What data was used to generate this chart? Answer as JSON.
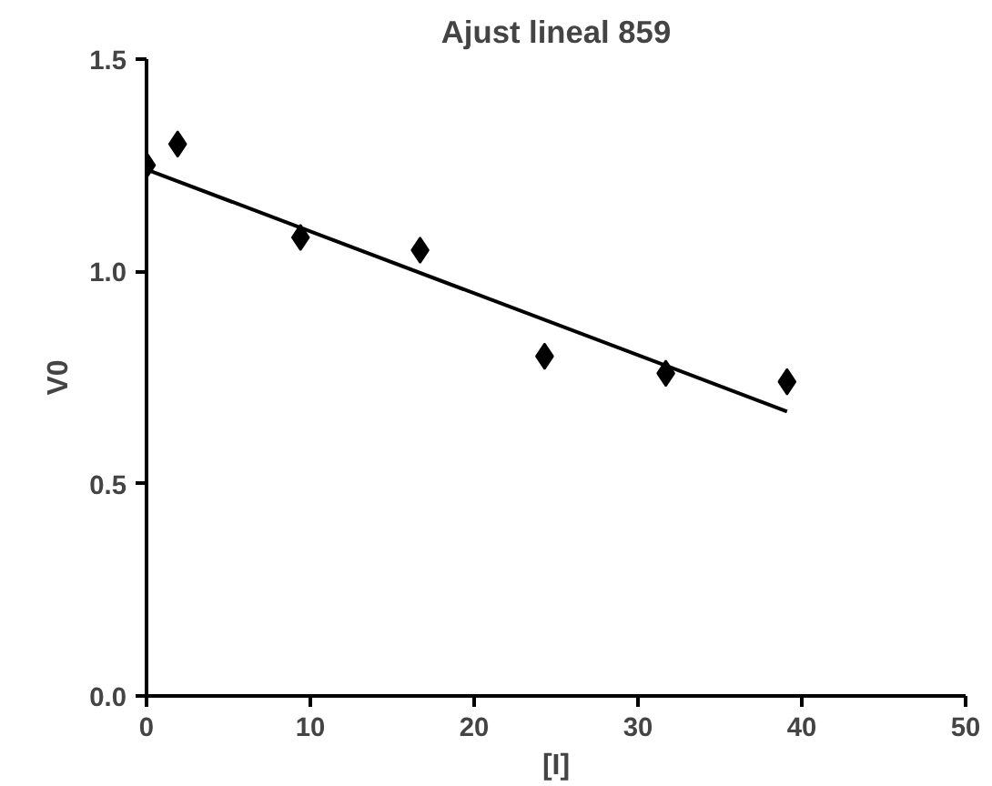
{
  "chart_data": {
    "type": "scatter",
    "title": "Ajust lineal 859",
    "xlabel": "[I]",
    "ylabel": "V0",
    "xlim": [
      0,
      50
    ],
    "ylim": [
      0,
      1.5
    ],
    "xticks": [
      0,
      10,
      20,
      30,
      40,
      50
    ],
    "yticks": [
      {
        "value": 0,
        "label": "0.0"
      },
      {
        "value": 0.5,
        "label": "0.5"
      },
      {
        "value": 1,
        "label": "1.0"
      },
      {
        "value": 1.5,
        "label": "1.5"
      }
    ],
    "grid": false,
    "series": [
      {
        "marker": "diamond",
        "color": "#000000",
        "x": [
          0,
          1.9,
          9.4,
          16.7,
          24.3,
          31.7,
          39.1
        ],
        "values": [
          1.25,
          1.3,
          1.08,
          1.05,
          0.8,
          0.76,
          0.74
        ]
      },
      {
        "type": "line",
        "marker": "none",
        "color": "#000000",
        "x": [
          0,
          39.1
        ],
        "values": [
          1.24,
          0.67
        ]
      }
    ]
  }
}
